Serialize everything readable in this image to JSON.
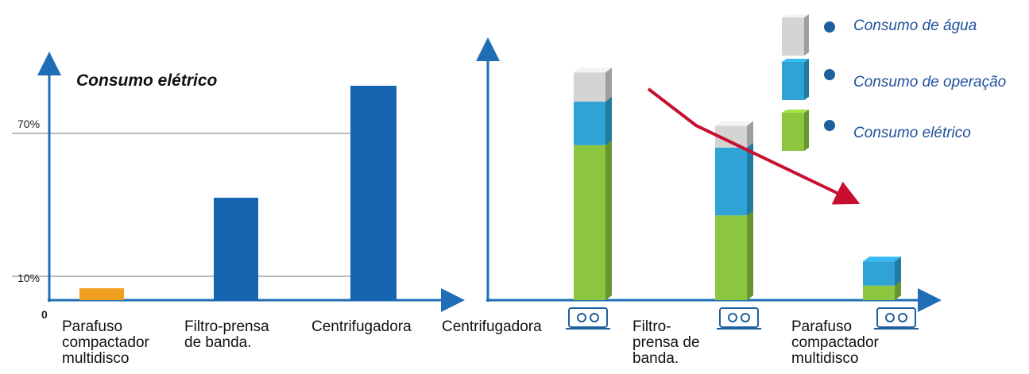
{
  "chart_data": [
    {
      "type": "bar",
      "title": "Consumo elétrico",
      "categories": [
        "Parafuso\ncompactador\nmultidisco",
        "Filtro-prensa\nde banda.",
        "Centrifugadora"
      ],
      "values": [
        5,
        43,
        90
      ],
      "bar_colors": [
        "#f0a020",
        "#1565b0",
        "#1565b0"
      ],
      "y_ticks": [
        {
          "value": 0,
          "label": "0"
        },
        {
          "value": 10,
          "label": "10%"
        },
        {
          "value": 70,
          "label": "70%"
        }
      ],
      "ylim": [
        0,
        100
      ],
      "grid": "horizontal lines at 10% and 70%"
    },
    {
      "type": "bar",
      "stacked": true,
      "categories": [
        "Centrifugadora",
        "Filtro-\nprensa de\nbanda.",
        "Parafuso\ncompactador\nmultidisco"
      ],
      "series": [
        {
          "name": "Consumo elétrico",
          "color": "#8cc63f",
          "values": [
            64,
            35,
            6
          ]
        },
        {
          "name": "Consumo de operação",
          "color": "#2fa3d6",
          "values": [
            18,
            28,
            10
          ]
        },
        {
          "name": "Consumo de água",
          "color": "#d4d4d4",
          "values": [
            12,
            9,
            0
          ]
        }
      ],
      "legend_position": "top-right",
      "annotation": "red downward trend arrow",
      "trend_color": "#c8102e"
    }
  ]
}
